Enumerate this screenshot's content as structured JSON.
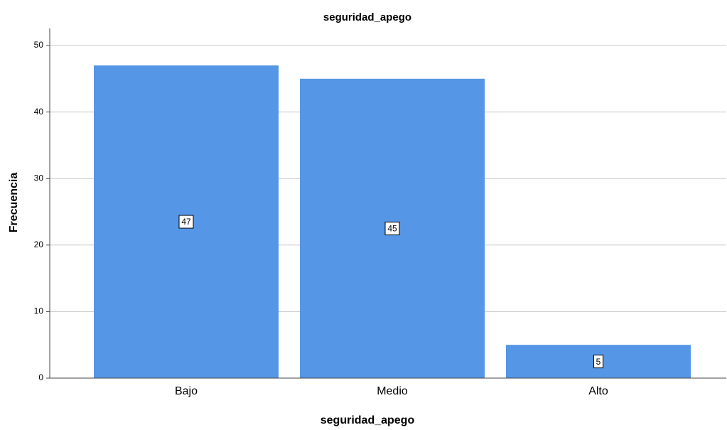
{
  "chart_data": {
    "type": "bar",
    "title": "seguridad_apego",
    "x_label": "seguridad_apego",
    "y_label": "Frecuencia",
    "categories": [
      "Bajo",
      "Medio",
      "Alto"
    ],
    "values": [
      47,
      45,
      5
    ],
    "color": "#5596e6",
    "ylim": [
      0,
      50
    ],
    "yticks": [
      0,
      10,
      20,
      30,
      40,
      50
    ],
    "grid": true
  }
}
